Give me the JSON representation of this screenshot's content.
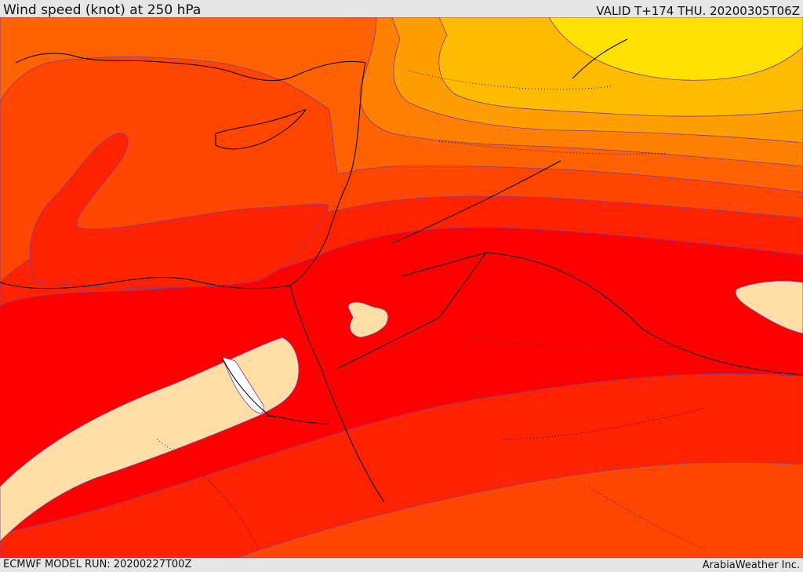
{
  "header": {
    "title": "Wind speed (knot) at 250 hPa",
    "valid": "VALID T+174 THU. 20200305T06Z"
  },
  "footer": {
    "model_run": "ECMWF MODEL RUN: 20200227T00Z",
    "credit": "ArabiaWeather Inc."
  },
  "map": {
    "field": "wind speed at 250 hPa",
    "colors": {
      "band_0": "#ffe000",
      "band_1": "#ffbb00",
      "band_2": "#ff9e00",
      "band_3": "#ff8000",
      "band_4": "#ff6200",
      "band_5": "#ff4500",
      "band_6": "#ff2200",
      "band_7": "#ff0000",
      "jet_core": "#fedda6",
      "core_max": "#ffffff",
      "contour": "#7a3c9a",
      "coastline": "#000000"
    }
  }
}
